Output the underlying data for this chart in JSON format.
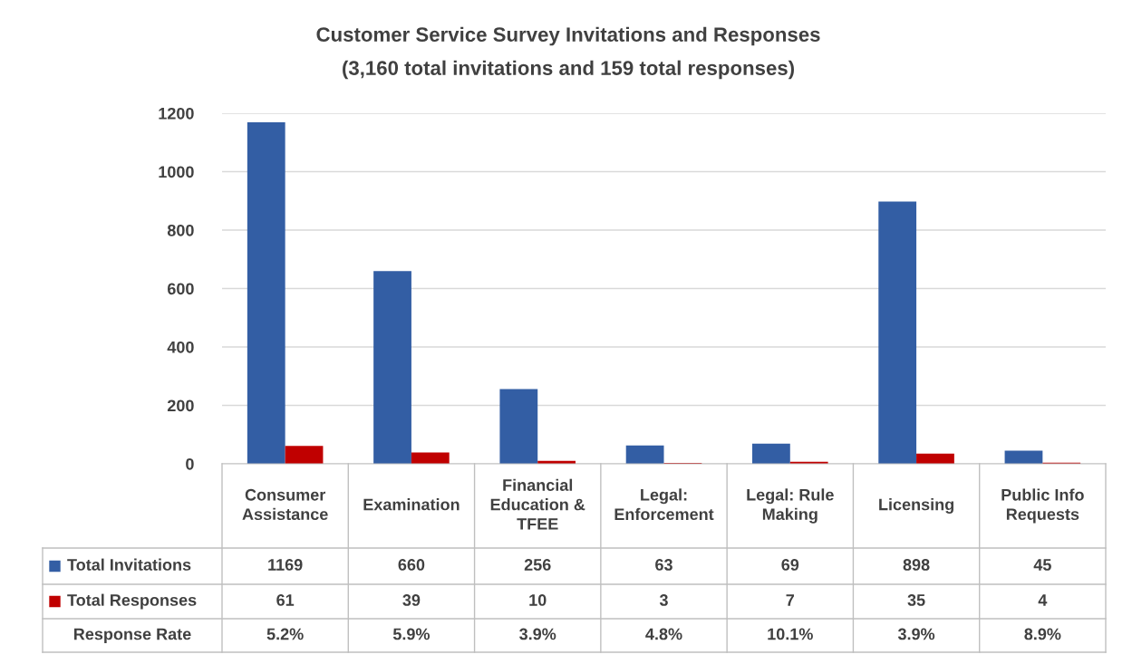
{
  "chart_data": {
    "type": "bar",
    "title": "Customer Service Survey Invitations and Responses",
    "subtitle": "(3,160 total invitations and 159 total responses)",
    "categories": [
      "Consumer Assistance",
      "Examination",
      "Financial Education & TFEE",
      "Legal: Enforcement",
      "Legal: Rule Making",
      "Licensing",
      "Public Info Requests"
    ],
    "series": [
      {
        "name": "Total Invitations",
        "color": "#335ea4",
        "values": [
          1169,
          660,
          256,
          63,
          69,
          898,
          45
        ]
      },
      {
        "name": "Total Responses",
        "color": "#c00000",
        "values": [
          61,
          39,
          10,
          3,
          7,
          35,
          4
        ]
      }
    ],
    "annotations": [
      "Response Rate",
      "5.2%",
      "5.9%",
      "3.9%",
      "4.8%",
      "10.1%",
      "3.9%",
      "8.9%"
    ],
    "legend": "bottom",
    "ylim": [
      0,
      1200
    ],
    "yticks": [
      0,
      200,
      400,
      600,
      800,
      1000,
      1200
    ],
    "grid": "y",
    "data_labels": true
  }
}
